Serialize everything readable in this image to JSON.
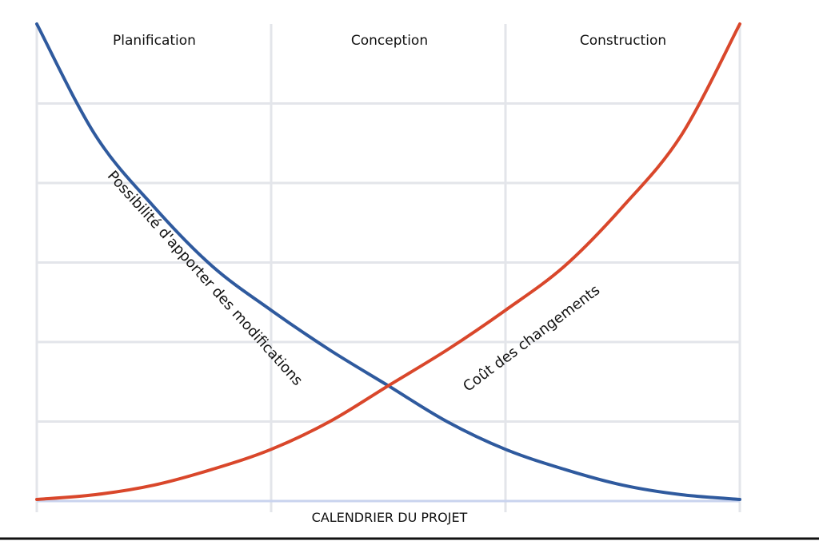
{
  "chart_data": {
    "type": "line",
    "title": "",
    "xlabel": "CALENDRIER DU PROJET",
    "ylabel": "",
    "phases": [
      "Planification",
      "Conception",
      "Construction"
    ],
    "grid": true,
    "x_range": [
      0,
      3
    ],
    "y_range": [
      0,
      6
    ],
    "series": [
      {
        "name": "Possibilité d'apporter des modifications",
        "color": "#2f5a9e",
        "x": [
          0,
          0.25,
          0.5,
          0.75,
          1.0,
          1.25,
          1.5,
          1.75,
          2.0,
          2.25,
          2.5,
          2.75,
          3.0
        ],
        "y": [
          6.0,
          4.6,
          3.7,
          2.95,
          2.4,
          1.9,
          1.45,
          1.0,
          0.65,
          0.4,
          0.2,
          0.08,
          0.02
        ]
      },
      {
        "name": "Coût des changements",
        "color": "#d9472b",
        "x": [
          0,
          0.25,
          0.5,
          0.75,
          1.0,
          1.25,
          1.5,
          1.75,
          2.0,
          2.25,
          2.5,
          2.75,
          3.0
        ],
        "y": [
          0.02,
          0.08,
          0.2,
          0.4,
          0.65,
          1.0,
          1.45,
          1.9,
          2.4,
          2.95,
          3.7,
          4.6,
          6.0
        ]
      }
    ]
  }
}
